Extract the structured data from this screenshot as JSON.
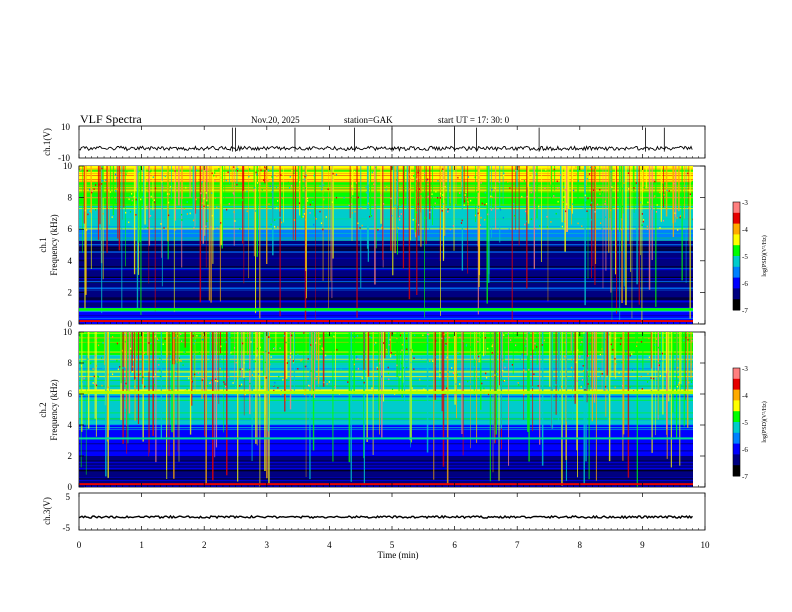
{
  "header": {
    "title": "VLF  Spectra",
    "date": "Nov.20, 2025",
    "station": "station=GAK",
    "start": "start  UT  =    17: 30: 0"
  },
  "colorbar": {
    "label": "log(PSD)(V²/Hz)",
    "ticks": [
      "-3",
      "-4",
      "-5",
      "-6",
      "-7"
    ],
    "colors": [
      "#ff7f7f",
      "#e60000",
      "#ffaa00",
      "#ffff00",
      "#00ff00",
      "#00cccc",
      "#0080ff",
      "#0000ff",
      "#000080",
      "#000000"
    ]
  },
  "chart_data": [
    {
      "type": "line",
      "panel": "ch1-waveform",
      "ylabel": "ch.1(V)",
      "ylim": [
        -10,
        10
      ],
      "yticks": [
        "10",
        "-10"
      ],
      "xlim": [
        0,
        10
      ],
      "mean_level": -4,
      "spikes_min": [
        2.45,
        2.5,
        3.45,
        4.4,
        5.0,
        6.0,
        6.35,
        7.35,
        9.05,
        9.35
      ]
    },
    {
      "type": "heatmap",
      "panel": "ch1-spectrogram",
      "ylabel": "ch.1\nFrequency  (kHz)",
      "ylim": [
        0,
        10
      ],
      "yticks": [
        "10",
        "8",
        "6",
        "4",
        "2",
        "0"
      ],
      "xlim": [
        0,
        10
      ],
      "zlabel": "log(PSD)(V²/Hz)",
      "zlim": [
        -7,
        -3
      ],
      "bands_khz": [
        {
          "f0": 9.0,
          "f1": 10.0,
          "level": -4.3
        },
        {
          "f0": 7.5,
          "f1": 9.0,
          "level": -4.7
        },
        {
          "f0": 6.0,
          "f1": 7.5,
          "level": -5.1
        },
        {
          "f0": 5.3,
          "f1": 6.0,
          "level": -5.5
        },
        {
          "f0": 1.0,
          "f1": 5.3,
          "level": -6.6
        },
        {
          "f0": 0.8,
          "f1": 1.0,
          "level": -5.0
        },
        {
          "f0": 0.0,
          "f1": 0.8,
          "level": -6.2
        }
      ]
    },
    {
      "type": "heatmap",
      "panel": "ch2-spectrogram",
      "ylabel": "ch.2\nFrequency  (kHz)",
      "ylim": [
        0,
        10
      ],
      "yticks": [
        "10",
        "8",
        "6",
        "4",
        "2",
        "0"
      ],
      "xlim": [
        0,
        10
      ],
      "zlabel": "log(PSD)(V²/Hz)",
      "zlim": [
        -7,
        -3
      ],
      "bands_khz": [
        {
          "f0": 8.5,
          "f1": 10.0,
          "level": -4.6
        },
        {
          "f0": 6.0,
          "f1": 6.3,
          "level": -4.4
        },
        {
          "f0": 6.3,
          "f1": 8.5,
          "level": -5.0
        },
        {
          "f0": 4.0,
          "f1": 6.0,
          "level": -5.4
        },
        {
          "f0": 3.0,
          "f1": 4.0,
          "level": -5.9
        },
        {
          "f0": 2.0,
          "f1": 3.0,
          "level": -6.2
        },
        {
          "f0": 0.0,
          "f1": 2.0,
          "level": -6.6
        }
      ]
    },
    {
      "type": "line",
      "panel": "ch3-waveform",
      "ylabel": "ch.3(V)",
      "ylim": [
        -5,
        5
      ],
      "yticks": [
        "5",
        "-5"
      ],
      "xlim": [
        0,
        10
      ],
      "mean_level": -1.5
    }
  ],
  "xaxis": {
    "label": "Time  (min)",
    "ticks": [
      "0",
      "1",
      "2",
      "3",
      "4",
      "5",
      "6",
      "7",
      "8",
      "9",
      "10"
    ]
  }
}
